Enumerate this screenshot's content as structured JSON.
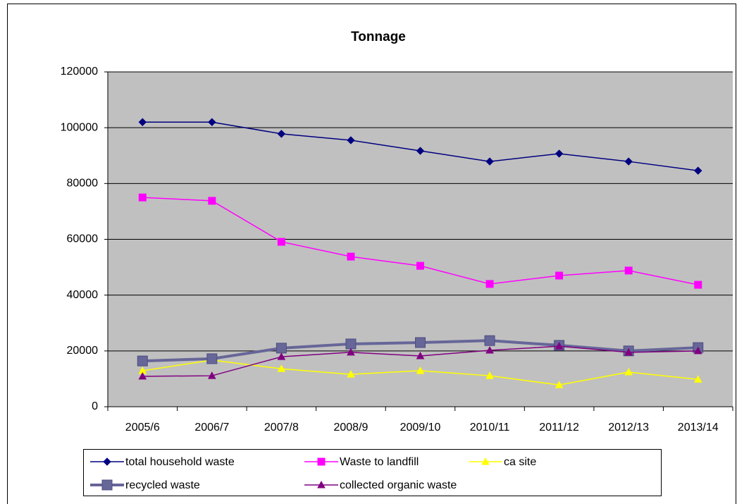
{
  "chart_data": {
    "type": "line",
    "title": "Tonnage",
    "categories": [
      "2005/6",
      "2006/7",
      "2007/8",
      "2008/9",
      "2009/10",
      "2010/11",
      "2011/12",
      "2012/13",
      "2013/14"
    ],
    "series": [
      {
        "name": "total household waste",
        "color": "#000080",
        "marker": "diamond",
        "values": [
          102000,
          102000,
          97800,
          95500,
          91700,
          87900,
          90700,
          87900,
          84600
        ]
      },
      {
        "name": "Waste to landfill",
        "color": "#ff00ff",
        "marker": "square",
        "values": [
          75000,
          73800,
          59100,
          53800,
          50500,
          44000,
          47000,
          48800,
          43700
        ]
      },
      {
        "name": "ca site",
        "color": "#ffff00",
        "marker": "triangle",
        "values": [
          12900,
          16700,
          13600,
          11600,
          12900,
          11100,
          7800,
          12400,
          9800
        ]
      },
      {
        "name": "recycled waste",
        "color": "#666699",
        "marker": "square",
        "style": "bold",
        "values": [
          16400,
          17200,
          21000,
          22500,
          23000,
          23700,
          22000,
          20000,
          21200
        ]
      },
      {
        "name": "collected organic waste",
        "color": "#800080",
        "marker": "triangle",
        "values": [
          10900,
          11100,
          17900,
          19500,
          18200,
          20200,
          21700,
          19500,
          20000
        ]
      }
    ],
    "ylim": [
      0,
      120000
    ],
    "yticks": [
      0,
      20000,
      40000,
      60000,
      80000,
      100000,
      120000
    ],
    "grid": true,
    "legend": "bottom",
    "plot_background": "#c0c0c0"
  }
}
